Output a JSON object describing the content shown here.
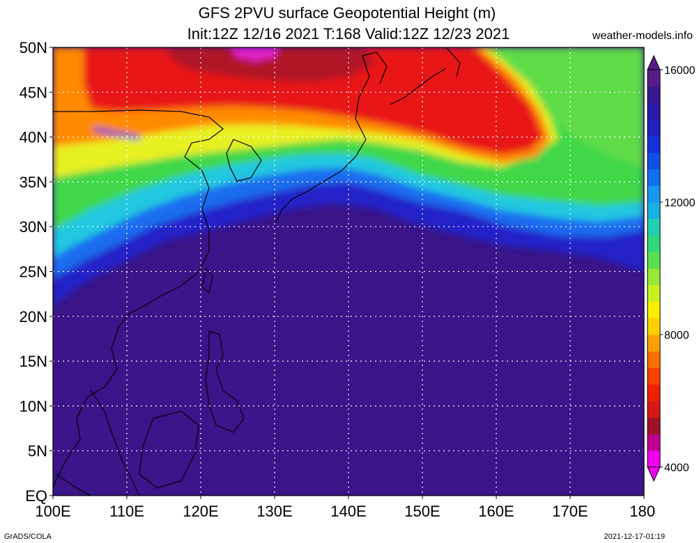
{
  "header": {
    "title_line1": "GFS 2PVU surface Geopotential Height (m)",
    "title_line2": "Init:12Z 12/16 2021 T:168 Valid:12Z 12/23 2021",
    "site": "weather-models.info"
  },
  "axes": {
    "lat_labels": [
      "50N",
      "45N",
      "40N",
      "35N",
      "30N",
      "25N",
      "20N",
      "15N",
      "10N",
      "5N",
      "EQ"
    ],
    "lon_labels": [
      "100E",
      "110E",
      "120E",
      "130E",
      "140E",
      "150E",
      "160E",
      "170E",
      "180"
    ]
  },
  "colorbar": {
    "labels": [
      "16000",
      "12000",
      "8000",
      "4000"
    ],
    "colors": [
      "#f000f0",
      "#c00090",
      "#a01028",
      "#d81818",
      "#f02000",
      "#ff4000",
      "#ff7000",
      "#ffa000",
      "#ffd000",
      "#f8f000",
      "#c8f020",
      "#98e838",
      "#58e050",
      "#30d878",
      "#20d0b0",
      "#18b0e0",
      "#1898f0",
      "#1070f0",
      "#1050e8",
      "#1830d8",
      "#2020c0",
      "#2818a8",
      "#381890",
      "#581a88"
    ]
  },
  "map": {
    "colors": {
      "tropical": "#3a1488",
      "deep_blue": "#2020c0",
      "blue": "#1c6cf0",
      "cyan": "#20c8e0",
      "green": "#40d848",
      "yellow": "#e8f020",
      "orange": "#ff8a00",
      "red": "#e81818",
      "dark_red": "#b01828",
      "magenta": "#e020c8"
    }
  },
  "footer": {
    "left": "GrADS/COLA",
    "right": "2021-12-17-01:19"
  }
}
